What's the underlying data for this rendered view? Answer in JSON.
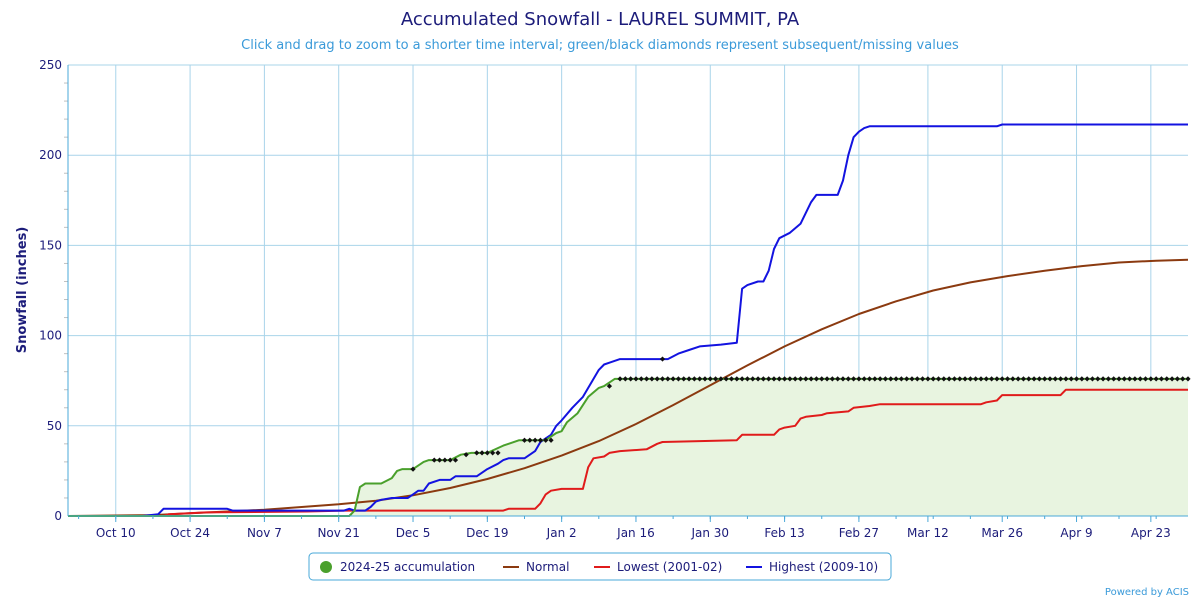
{
  "chart_data": {
    "type": "line",
    "title": "Accumulated Snowfall - LAUREL SUMMIT, PA",
    "subtitle": "Click and drag to zoom to a shorter time interval; green/black diamonds represent subsequent/missing values",
    "ylabel": "Snowfall (inches)",
    "credit": "Powered by ACIS",
    "ylim": [
      0,
      250
    ],
    "yticks": [
      0,
      50,
      100,
      150,
      200,
      250
    ],
    "xlim": [
      "2024-10-01",
      "2025-04-30"
    ],
    "xticks": [
      {
        "date": "2024-10-10",
        "label": "Oct 10"
      },
      {
        "date": "2024-10-24",
        "label": "Oct 24"
      },
      {
        "date": "2024-11-07",
        "label": "Nov 7"
      },
      {
        "date": "2024-11-21",
        "label": "Nov 21"
      },
      {
        "date": "2024-12-05",
        "label": "Dec 5"
      },
      {
        "date": "2024-12-19",
        "label": "Dec 19"
      },
      {
        "date": "2025-01-02",
        "label": "Jan 2"
      },
      {
        "date": "2025-01-16",
        "label": "Jan 16"
      },
      {
        "date": "2025-01-30",
        "label": "Jan 30"
      },
      {
        "date": "2025-02-13",
        "label": "Feb 13"
      },
      {
        "date": "2025-02-27",
        "label": "Feb 27"
      },
      {
        "date": "2025-03-12",
        "label": "Mar 12"
      },
      {
        "date": "2025-03-26",
        "label": "Mar 26"
      },
      {
        "date": "2025-04-09",
        "label": "Apr 9"
      },
      {
        "date": "2025-04-23",
        "label": "Apr 23"
      }
    ],
    "grid": true,
    "legend_placement": "bottom-center",
    "series": [
      {
        "name": "2024-25 accumulation",
        "color": "#4aa02c",
        "fill": "#e8f4e0",
        "points": [
          [
            "2024-10-01",
            0
          ],
          [
            "2024-11-23",
            0
          ],
          [
            "2024-11-24",
            3
          ],
          [
            "2024-11-25",
            16
          ],
          [
            "2024-11-26",
            18
          ],
          [
            "2024-11-29",
            18
          ],
          [
            "2024-12-01",
            21
          ],
          [
            "2024-12-02",
            25
          ],
          [
            "2024-12-03",
            26
          ],
          [
            "2024-12-05",
            26
          ],
          [
            "2024-12-07",
            30
          ],
          [
            "2024-12-08",
            31
          ],
          [
            "2024-12-12",
            31
          ],
          [
            "2024-12-14",
            34
          ],
          [
            "2024-12-16",
            35
          ],
          [
            "2024-12-19",
            35
          ],
          [
            "2024-12-22",
            39
          ],
          [
            "2024-12-23",
            40
          ],
          [
            "2024-12-25",
            42
          ],
          [
            "2024-12-30",
            42
          ],
          [
            "2024-12-31",
            44
          ],
          [
            "2025-01-01",
            46
          ],
          [
            "2025-01-02",
            47
          ],
          [
            "2025-01-03",
            52
          ],
          [
            "2025-01-05",
            57
          ],
          [
            "2025-01-07",
            66
          ],
          [
            "2025-01-09",
            71
          ],
          [
            "2025-01-10",
            72
          ],
          [
            "2025-01-12",
            76
          ],
          [
            "2025-04-30",
            76
          ]
        ]
      },
      {
        "name": "Normal",
        "color": "#8b3a10",
        "points": [
          [
            "2024-10-01",
            0
          ],
          [
            "2024-10-17",
            0.5
          ],
          [
            "2024-10-24",
            1.5
          ],
          [
            "2024-10-31",
            2.5
          ],
          [
            "2024-11-07",
            3.5
          ],
          [
            "2024-11-14",
            5
          ],
          [
            "2024-11-21",
            6.5
          ],
          [
            "2024-11-28",
            8.5
          ],
          [
            "2024-12-05",
            11.5
          ],
          [
            "2024-12-12",
            15.5
          ],
          [
            "2024-12-19",
            20.5
          ],
          [
            "2024-12-26",
            26.5
          ],
          [
            "2025-01-02",
            33.5
          ],
          [
            "2025-01-09",
            41.5
          ],
          [
            "2025-01-16",
            51
          ],
          [
            "2025-01-23",
            61.5
          ],
          [
            "2025-01-30",
            72.5
          ],
          [
            "2025-02-06",
            83.5
          ],
          [
            "2025-02-13",
            94
          ],
          [
            "2025-02-20",
            103.5
          ],
          [
            "2025-02-27",
            112
          ],
          [
            "2025-03-06",
            119
          ],
          [
            "2025-03-13",
            125
          ],
          [
            "2025-03-20",
            129.5
          ],
          [
            "2025-03-27",
            133
          ],
          [
            "2025-04-03",
            136
          ],
          [
            "2025-04-10",
            138.5
          ],
          [
            "2025-04-17",
            140.5
          ],
          [
            "2025-04-24",
            141.5
          ],
          [
            "2025-04-30",
            142
          ]
        ]
      },
      {
        "name": "Lowest (2001-02)",
        "color": "#e01b1b",
        "points": [
          [
            "2024-10-01",
            0
          ],
          [
            "2024-10-19",
            0
          ],
          [
            "2024-10-20",
            1
          ],
          [
            "2024-10-27",
            2
          ],
          [
            "2024-11-15",
            2.5
          ],
          [
            "2024-11-22",
            3
          ],
          [
            "2024-12-22",
            3
          ],
          [
            "2024-12-23",
            4
          ],
          [
            "2024-12-28",
            4
          ],
          [
            "2024-12-29",
            7
          ],
          [
            "2024-12-30",
            12
          ],
          [
            "2024-12-31",
            14
          ],
          [
            "2025-01-02",
            15
          ],
          [
            "2025-01-06",
            15
          ],
          [
            "2025-01-07",
            27
          ],
          [
            "2025-01-08",
            32
          ],
          [
            "2025-01-10",
            33
          ],
          [
            "2025-01-11",
            35
          ],
          [
            "2025-01-13",
            36
          ],
          [
            "2025-01-18",
            37
          ],
          [
            "2025-01-20",
            40
          ],
          [
            "2025-01-21",
            41
          ],
          [
            "2025-02-04",
            42
          ],
          [
            "2025-02-05",
            45
          ],
          [
            "2025-02-11",
            45
          ],
          [
            "2025-02-12",
            48
          ],
          [
            "2025-02-13",
            49
          ],
          [
            "2025-02-15",
            50
          ],
          [
            "2025-02-16",
            54
          ],
          [
            "2025-02-17",
            55
          ],
          [
            "2025-02-20",
            56
          ],
          [
            "2025-02-21",
            57
          ],
          [
            "2025-02-25",
            58
          ],
          [
            "2025-02-26",
            60
          ],
          [
            "2025-03-01",
            61
          ],
          [
            "2025-03-03",
            62
          ],
          [
            "2025-03-22",
            62
          ],
          [
            "2025-03-23",
            63
          ],
          [
            "2025-03-25",
            64
          ],
          [
            "2025-03-26",
            67
          ],
          [
            "2025-04-06",
            67
          ],
          [
            "2025-04-07",
            70
          ],
          [
            "2025-04-30",
            70
          ]
        ]
      },
      {
        "name": "Highest (2009-10)",
        "color": "#1313e0",
        "points": [
          [
            "2024-10-01",
            0
          ],
          [
            "2024-10-15",
            0
          ],
          [
            "2024-10-18",
            1
          ],
          [
            "2024-10-19",
            4
          ],
          [
            "2024-10-25",
            4
          ],
          [
            "2024-10-31",
            4
          ],
          [
            "2024-11-01",
            3
          ],
          [
            "2024-11-22",
            3
          ],
          [
            "2024-11-23",
            4
          ],
          [
            "2024-11-24",
            3
          ],
          [
            "2024-11-26",
            3
          ],
          [
            "2024-11-27",
            5
          ],
          [
            "2024-11-28",
            8
          ],
          [
            "2024-11-29",
            9
          ],
          [
            "2024-12-01",
            10
          ],
          [
            "2024-12-04",
            10
          ],
          [
            "2024-12-05",
            12
          ],
          [
            "2024-12-06",
            14
          ],
          [
            "2024-12-07",
            14
          ],
          [
            "2024-12-08",
            18
          ],
          [
            "2024-12-10",
            20
          ],
          [
            "2024-12-12",
            20
          ],
          [
            "2024-12-13",
            22
          ],
          [
            "2024-12-17",
            22
          ],
          [
            "2024-12-19",
            26
          ],
          [
            "2024-12-21",
            29
          ],
          [
            "2024-12-22",
            31
          ],
          [
            "2024-12-23",
            32
          ],
          [
            "2024-12-26",
            32
          ],
          [
            "2024-12-28",
            36
          ],
          [
            "2024-12-29",
            41
          ],
          [
            "2024-12-31",
            45
          ],
          [
            "2025-01-01",
            50
          ],
          [
            "2025-01-02",
            53
          ],
          [
            "2025-01-04",
            60
          ],
          [
            "2025-01-06",
            66
          ],
          [
            "2025-01-07",
            71
          ],
          [
            "2025-01-08",
            76
          ],
          [
            "2025-01-09",
            81
          ],
          [
            "2025-01-10",
            84
          ],
          [
            "2025-01-11",
            85
          ],
          [
            "2025-01-13",
            87
          ],
          [
            "2025-01-22",
            87
          ],
          [
            "2025-01-24",
            90
          ],
          [
            "2025-01-26",
            92
          ],
          [
            "2025-01-28",
            94
          ],
          [
            "2025-02-01",
            95
          ],
          [
            "2025-02-04",
            96
          ],
          [
            "2025-02-05",
            126
          ],
          [
            "2025-02-06",
            128
          ],
          [
            "2025-02-08",
            130
          ],
          [
            "2025-02-09",
            130
          ],
          [
            "2025-02-10",
            136
          ],
          [
            "2025-02-11",
            148
          ],
          [
            "2025-02-12",
            154
          ],
          [
            "2025-02-14",
            157
          ],
          [
            "2025-02-16",
            162
          ],
          [
            "2025-02-17",
            168
          ],
          [
            "2025-02-18",
            174
          ],
          [
            "2025-02-19",
            178
          ],
          [
            "2025-02-23",
            178
          ],
          [
            "2025-02-24",
            186
          ],
          [
            "2025-02-25",
            200
          ],
          [
            "2025-02-26",
            210
          ],
          [
            "2025-02-27",
            213
          ],
          [
            "2025-02-28",
            215
          ],
          [
            "2025-03-01",
            216
          ],
          [
            "2025-03-25",
            216
          ],
          [
            "2025-03-26",
            217
          ],
          [
            "2025-04-30",
            217
          ]
        ]
      }
    ],
    "missing_markers": {
      "color": "#111111",
      "points": [
        [
          "2024-12-05",
          26
        ],
        [
          "2024-12-09",
          31
        ],
        [
          "2024-12-10",
          31
        ],
        [
          "2024-12-11",
          31
        ],
        [
          "2024-12-12",
          31
        ],
        [
          "2024-12-13",
          31
        ],
        [
          "2024-12-15",
          34
        ],
        [
          "2024-12-17",
          35
        ],
        [
          "2024-12-18",
          35
        ],
        [
          "2024-12-19",
          35
        ],
        [
          "2024-12-20",
          35
        ],
        [
          "2024-12-21",
          35
        ],
        [
          "2024-12-26",
          42
        ],
        [
          "2024-12-27",
          42
        ],
        [
          "2024-12-28",
          42
        ],
        [
          "2024-12-29",
          42
        ],
        [
          "2024-12-30",
          42
        ],
        [
          "2024-12-31",
          42
        ],
        [
          "2025-01-11",
          72
        ],
        [
          "2025-01-21",
          87
        ]
      ],
      "flat_run": {
        "start": "2025-01-13",
        "end": "2025-04-30",
        "value": 76
      }
    }
  }
}
